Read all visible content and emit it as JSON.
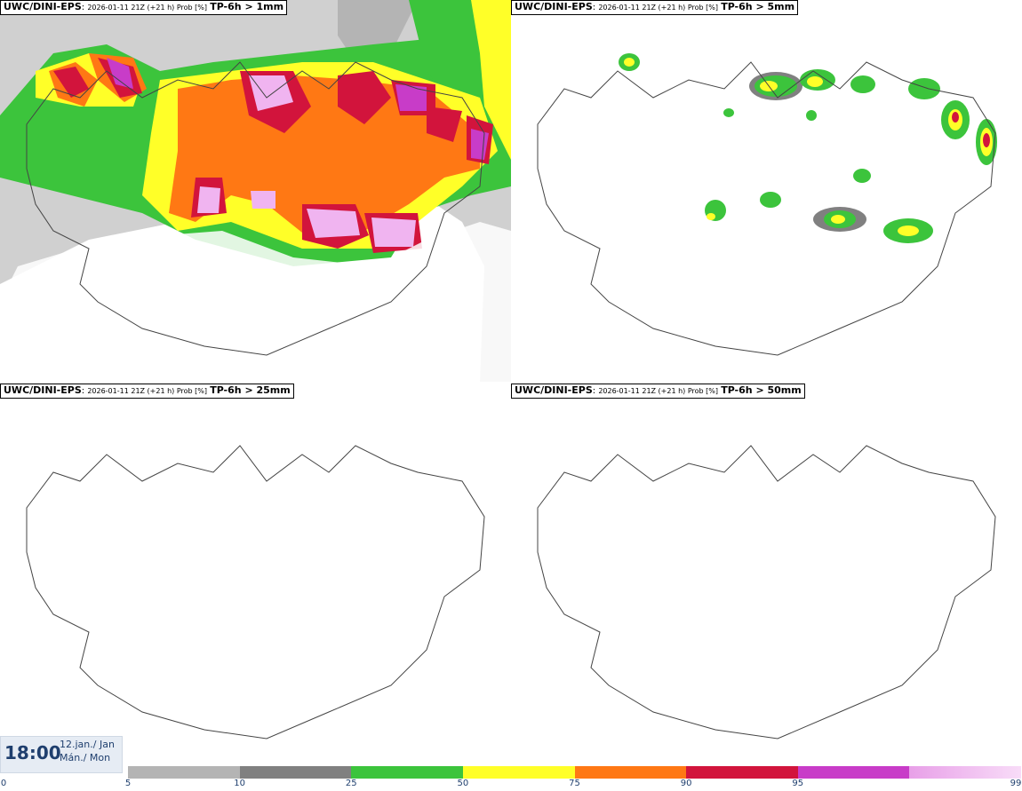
{
  "panels": [
    {
      "model": "UWC/DINI-EPS",
      "run": "2026-01-11 21Z (+21 h) Prob [%]",
      "param": "TP-6h > 1mm"
    },
    {
      "model": "UWC/DINI-EPS",
      "run": "2026-01-11 21Z (+21 h) Prob [%]",
      "param": "TP-6h > 5mm"
    },
    {
      "model": "UWC/DINI-EPS",
      "run": "2026-01-11 21Z (+21 h) Prob [%]",
      "param": "TP-6h > 25mm"
    },
    {
      "model": "UWC/DINI-EPS",
      "run": "2026-01-11 21Z (+21 h) Prob [%]",
      "param": "TP-6h > 50mm"
    }
  ],
  "valid_time": {
    "time": "18:00",
    "date_line1": "12.jan./ Jan",
    "date_line2": "Mán./ Mon"
  },
  "legend": {
    "labels": [
      "0",
      "5",
      "10",
      "25",
      "50",
      "75",
      "90",
      "95",
      "99"
    ],
    "colors": [
      "#b4b4b4",
      "#808080",
      "#3cc43c",
      "#ffff28",
      "#ff7814",
      "#d2143c",
      "#c83cc8",
      "#f0b4f0"
    ]
  }
}
